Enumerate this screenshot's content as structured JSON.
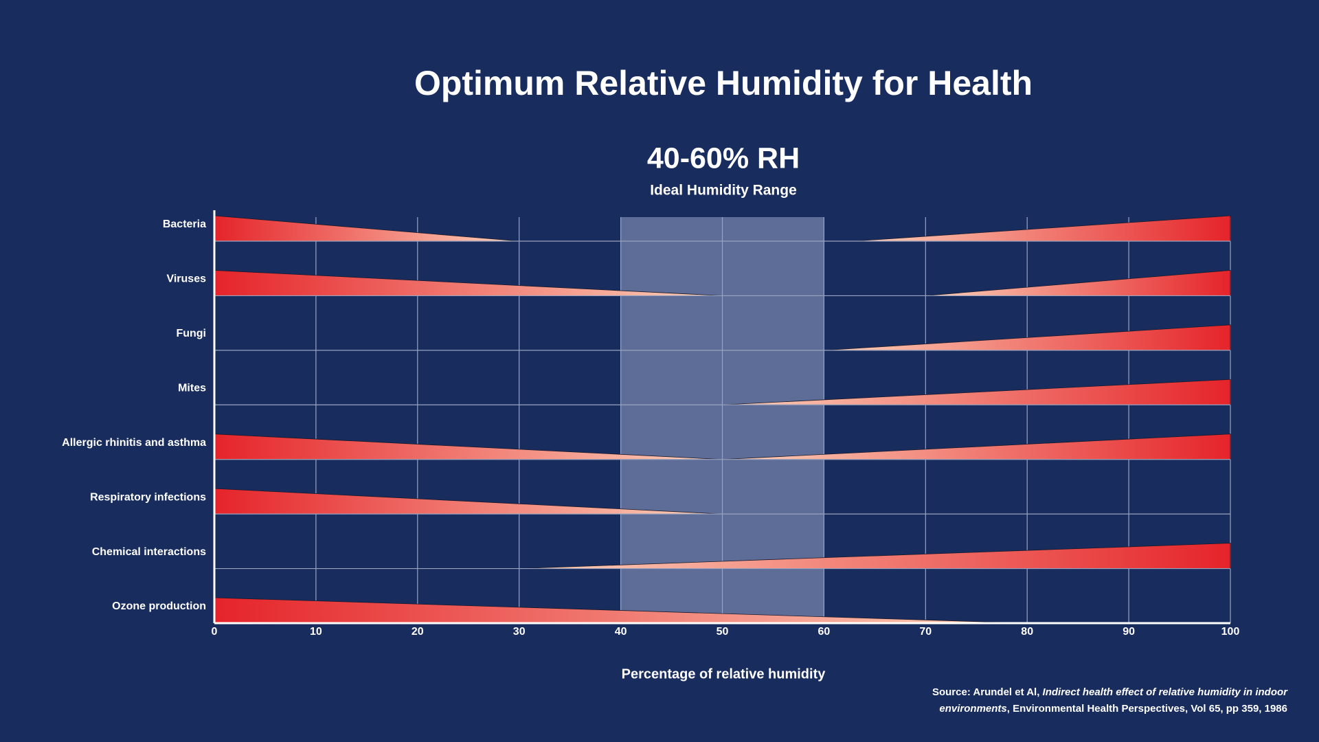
{
  "chart_data": {
    "type": "risk-wedge",
    "title": "Optimum Relative Humidity for Health",
    "subtitle": "40-60% RH",
    "subtitle_caption": "Ideal Humidity Range",
    "x_label": "Percentage of relative humidity",
    "categories": [
      "Bacteria",
      "Viruses",
      "Fungi",
      "Mites",
      "Allergic rhinitis and asthma",
      "Respiratory infections",
      "Chemical interactions",
      "Ozone production"
    ],
    "decreasing_to": [
      30,
      50,
      null,
      null,
      50,
      50,
      null,
      80
    ],
    "increasing_from": [
      63,
      70,
      60,
      50,
      50,
      null,
      30,
      null
    ],
    "ideal_range": [
      40,
      60
    ],
    "xlim": [
      0,
      100
    ],
    "xticks": [
      0,
      10,
      20,
      30,
      40,
      50,
      60,
      70,
      80,
      90,
      100
    ],
    "grid": true,
    "color": "#e5242a",
    "tip_color": "#fcd3bb",
    "band_color": "#5d6d98",
    "source": {
      "prefix": "Source: Arundel et Al, ",
      "title": "Indirect health effect of relative humidity in indoor environments",
      "suffix": ", Environmental Health Perspectives, Vol 65, pp 359, 1986"
    }
  }
}
